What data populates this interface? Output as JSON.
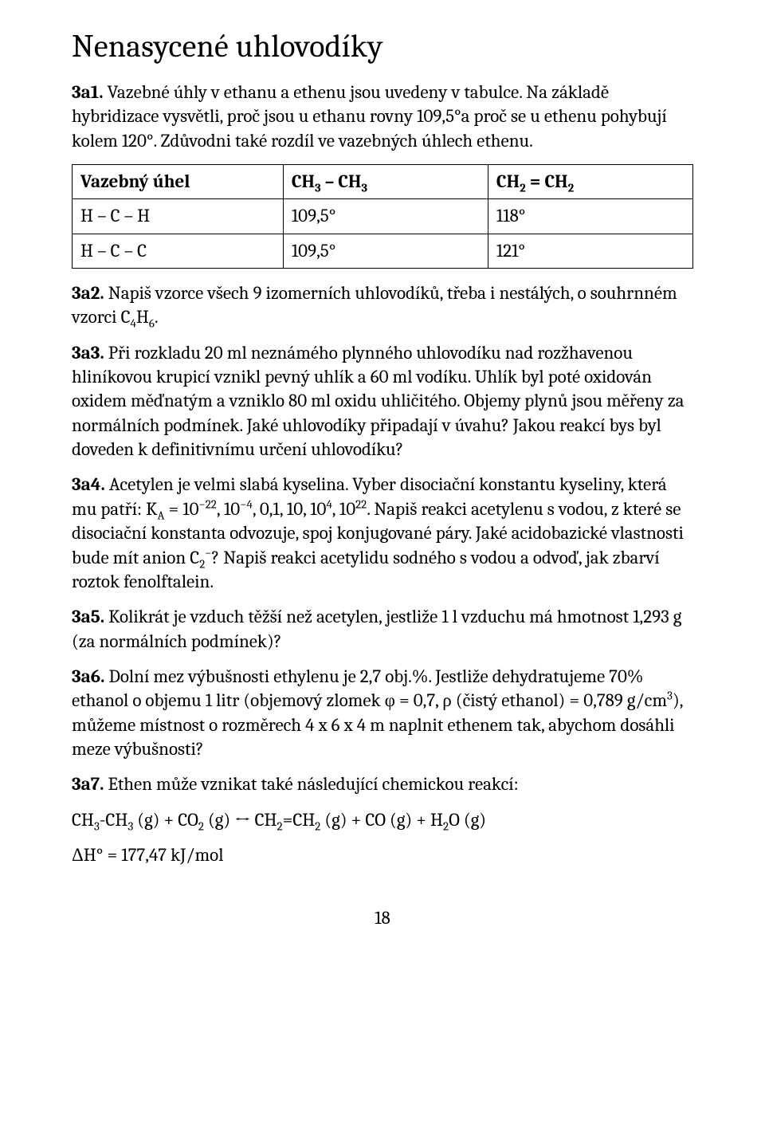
{
  "title": "Nenasycené uhlovodíky",
  "p1": {
    "label": "3a1.",
    "text": " Vazebné úhly v ethanu a ethenu jsou uvedeny v tabulce. Na základě hybridizace vysvětli, proč jsou u ethanu rovny 109,5°a proč se u ethenu pohybují kolem 120°. Zdůvodni také rozdíl ve vazebných úhlech ethenu."
  },
  "table": {
    "header": {
      "c1": "Vazebný úhel",
      "c2_html": "CH<sub>3</sub> – CH<sub>3</sub>",
      "c3_html": "CH<sub>2</sub> = CH<sub>2</sub>"
    },
    "rows": [
      {
        "c1": "H – C – H",
        "c2": "109,5°",
        "c3": "118°"
      },
      {
        "c1": "H – C – C",
        "c2": "109,5°",
        "c3": "121°"
      }
    ],
    "col_widths": [
      "34%",
      "33%",
      "33%"
    ]
  },
  "p2": {
    "label": "3a2.",
    "text_html": " Napiš vzorce všech 9 izomerních uhlovodíků, třeba i nestálých, o souhrnném vzorci C<sub>4</sub>H<sub>6</sub>."
  },
  "p3": {
    "label": "3a3.",
    "text": " Při rozkladu 20 ml neznámého plynného uhlovodíku nad rozžhavenou hliníkovou krupicí vznikl pevný uhlík a 60 ml vodíku. Uhlík byl poté oxidován oxidem měďnatým a vzniklo 80 ml oxidu uhličitého. Objemy plynů jsou měřeny za normálních podmínek. Jaké uhlovodíky připadají v úvahu? Jakou reakcí bys byl doveden k definitivnímu určení uhlovodíku?"
  },
  "p4": {
    "label": "3a4.",
    "text_html": " Acetylen je velmi slabá kyselina. Vyber disociační konstantu kyseliny, která mu patří: K<sub>A</sub> = 10<sup>&#8722;22</sup>, 10<sup>&#8722;4</sup>, 0,1, 10, 10<sup>4</sup>, 10<sup>22</sup>. Napiš reakci acetylenu s vodou, z které se disociační konstanta odvozuje, spoj konjugované páry. Jaké acidobazické vlastnosti bude mít anion C<sub>2</sub><sup>&#8722;</sup>? Napiš reakci acetylidu sodného s vodou a odvoď, jak zbarví roztok fenolftalein."
  },
  "p5": {
    "label": "3a5.",
    "text": " Kolikrát je vzduch těžší než acetylen, jestliže 1 l vzduchu má hmotnost 1,293 g (za normálních podmínek)?"
  },
  "p6": {
    "label": "3a6.",
    "text_html": " Dolní mez výbušnosti ethylenu je 2,7 obj.%. Jestliže dehydratujeme 70% ethanol o objemu 1 litr (objemový zlomek &#966; = 0,7, &#961; (čistý ethanol) = 0,789 g/cm<sup>3</sup>), můžeme místnost o rozměrech 4 x 6 x 4 m naplnit ethenem tak, abychom dosáhli meze výbušnosti?"
  },
  "p7": {
    "label": "3a7.",
    "text": " Ethen může vznikat také následující chemickou reakcí:"
  },
  "eq_html": "CH<sub>3</sub>-CH<sub>3</sub> (g) + CO<sub>2</sub> (g) &#8596; CH<sub>2</sub>=CH<sub>2</sub> (g) + CO (g) + H<sub>2</sub>O (g)",
  "dh": "ΔH° = 177,47 kJ/mol",
  "page_number": "18"
}
